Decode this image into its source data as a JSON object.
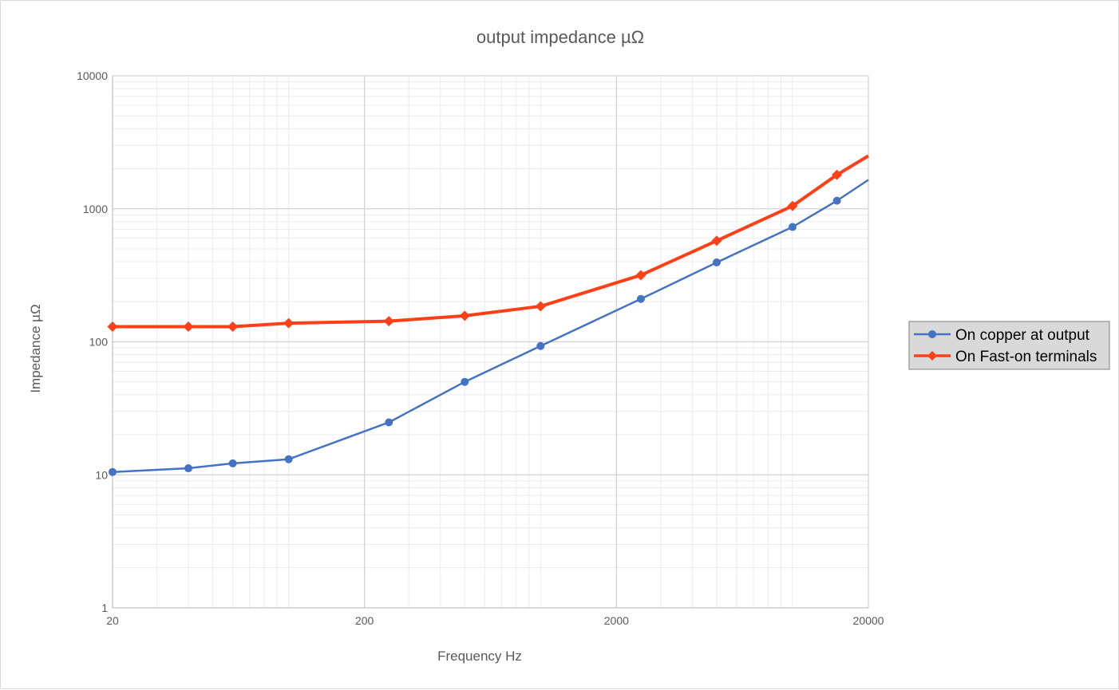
{
  "chart_data": {
    "type": "line",
    "title": "output impedance µΩ",
    "xlabel": "Frequency Hz",
    "ylabel": "Impedance µΩ",
    "x_scale": "log",
    "y_scale": "log",
    "xlim": [
      20,
      20000
    ],
    "ylim": [
      1,
      10000
    ],
    "x_ticks": [
      "20",
      "200",
      "2000",
      "20000"
    ],
    "y_ticks": [
      "1",
      "10",
      "100",
      "1000",
      "10000"
    ],
    "grid": true,
    "legend_position": "right",
    "series": [
      {
        "name": "On copper at output",
        "color": "#4472c4",
        "marker": "circle",
        "x": [
          20,
          40,
          60,
          100,
          250,
          500,
          1000,
          2500,
          5000,
          10000,
          15000,
          20000
        ],
        "y": [
          10.5,
          11.2,
          12.2,
          13.1,
          24.8,
          50,
          93,
          210,
          395,
          730,
          1150,
          1650
        ]
      },
      {
        "name": "On Fast-on terminals",
        "color": "#ff3f17",
        "marker": "diamond",
        "x": [
          20,
          40,
          60,
          100,
          250,
          500,
          1000,
          2500,
          5000,
          10000,
          15000,
          20000
        ],
        "y": [
          130,
          130,
          130,
          138,
          143,
          157,
          185,
          317,
          575,
          1050,
          1800,
          2500
        ]
      }
    ]
  }
}
